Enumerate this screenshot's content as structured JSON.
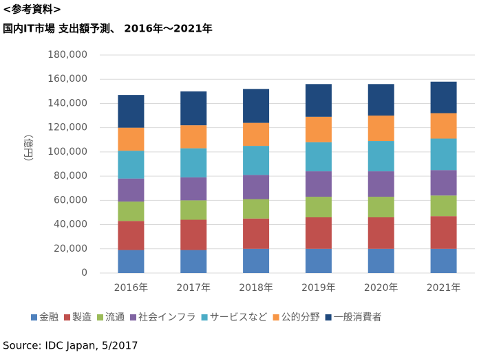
{
  "chart_data": {
    "type": "stacked_bar",
    "header": "<参考資料>",
    "title": "国内IT市場 支出額予測、 2016年～2021年",
    "ylabel": "（億円）",
    "source": "Source: IDC Japan, 5/2017",
    "categories": [
      "2016年",
      "2017年",
      "2018年",
      "2019年",
      "2020年",
      "2021年"
    ],
    "series": [
      {
        "name": "金融",
        "color": "#4f81bd",
        "values": [
          19000,
          19000,
          20000,
          20000,
          20000,
          20000
        ]
      },
      {
        "name": "製造",
        "color": "#c0504d",
        "values": [
          24000,
          25000,
          25000,
          26000,
          26000,
          27000
        ]
      },
      {
        "name": "流通",
        "color": "#9bbb59",
        "values": [
          16000,
          16000,
          16000,
          17000,
          17000,
          17000
        ]
      },
      {
        "name": "社会インフラ",
        "color": "#8064a2",
        "values": [
          19000,
          19000,
          20000,
          21000,
          21000,
          21000
        ]
      },
      {
        "name": "サービスなど",
        "color": "#4bacc6",
        "values": [
          23000,
          24000,
          24000,
          24000,
          25000,
          26000
        ]
      },
      {
        "name": "公的分野",
        "color": "#f79646",
        "values": [
          19000,
          19000,
          19000,
          21000,
          21000,
          21000
        ]
      },
      {
        "name": "一般消費者",
        "color": "#1f497d",
        "values": [
          27000,
          28000,
          28000,
          27000,
          26000,
          26000
        ]
      }
    ],
    "ylim": [
      0,
      180000
    ],
    "yticks": [
      0,
      {
        "value": 20000,
        "label": "20,000"
      },
      {
        "value": 40000,
        "label": "40,000"
      },
      {
        "value": 60000,
        "label": "60,000"
      },
      {
        "value": 80000,
        "label": "80,000"
      },
      {
        "value": 100000,
        "label": "100,000"
      },
      {
        "value": 120000,
        "label": "120,000"
      },
      {
        "value": 140000,
        "label": "140,000"
      },
      {
        "value": 160000,
        "label": "160,000"
      },
      {
        "value": 180000,
        "label": "180,000"
      }
    ],
    "grid": true,
    "legend": "bottom"
  }
}
